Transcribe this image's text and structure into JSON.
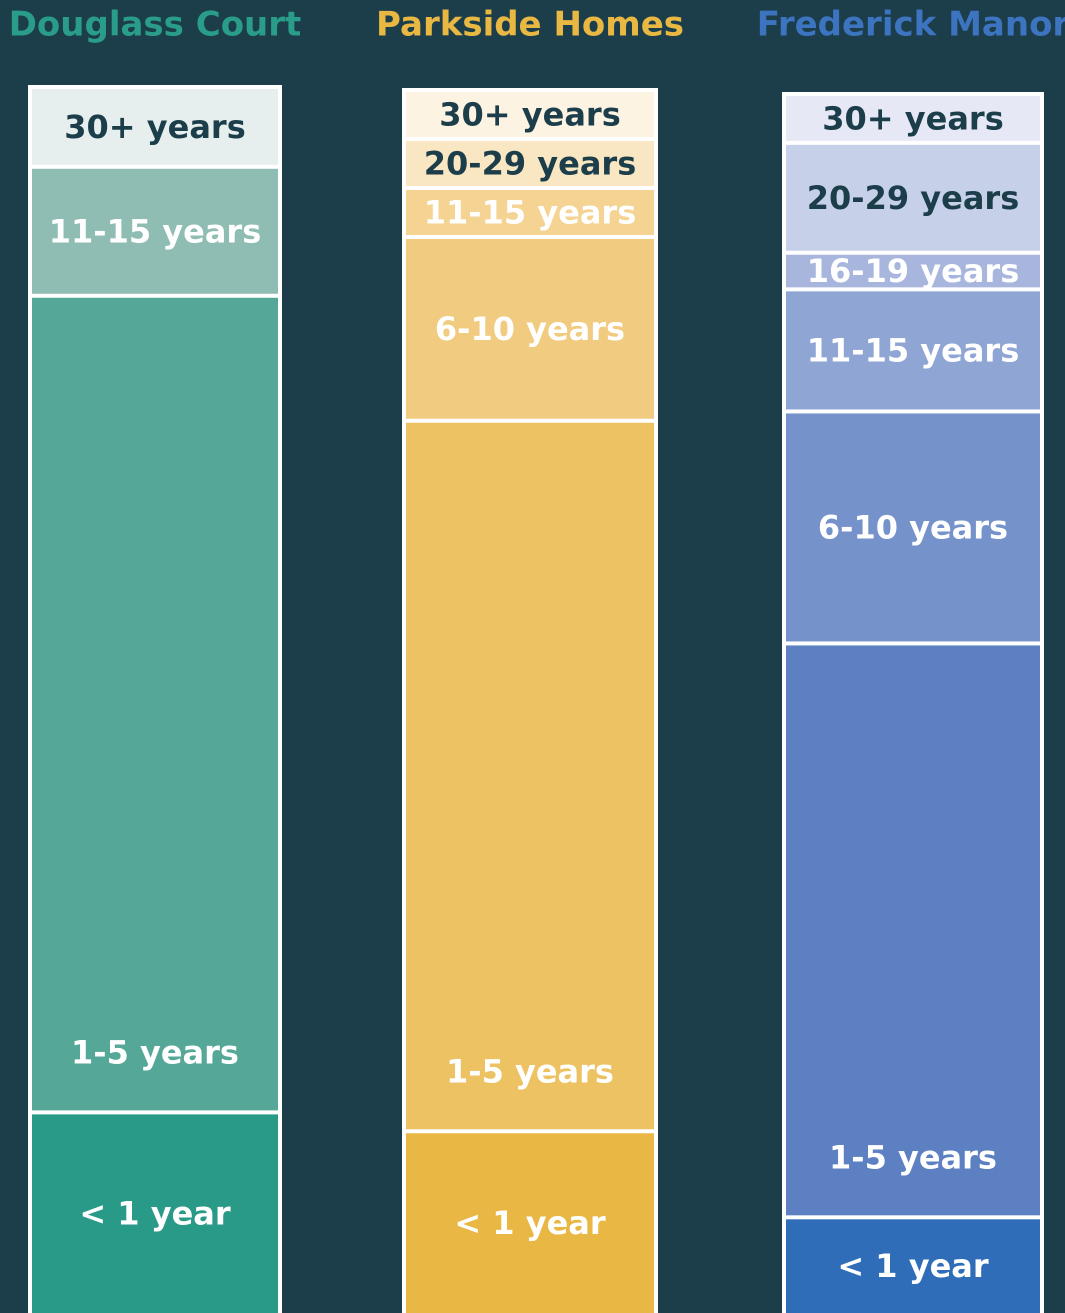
{
  "chart_data": {
    "type": "stacked-column",
    "columns": [
      {
        "name": "Douglass Court",
        "color": "#2a9d8a",
        "segments": [
          {
            "label": "30+ years",
            "value": 6.5,
            "color": "#e6efee",
            "label_color": "#1c3d4a"
          },
          {
            "label": "11-15 years",
            "value": 10.5,
            "color": "#8fbdb3",
            "label_color": "#ffffff"
          },
          {
            "label": "1-5 years",
            "value": 66.5,
            "color": "#55a797",
            "label_color": "#ffffff"
          },
          {
            "label": "< 1 year",
            "value": 16.5,
            "color": "#2a9a88",
            "label_color": "#ffffff"
          }
        ]
      },
      {
        "name": "Parkside Homes",
        "color": "#e8b843",
        "segments": [
          {
            "label": "30+ years",
            "value": 4,
            "color": "#fcf3e3",
            "label_color": "#1c3d4a"
          },
          {
            "label": "20-29 years",
            "value": 4,
            "color": "#f9e6c2",
            "label_color": "#1c3d4a"
          },
          {
            "label": "11-15 years",
            "value": 4,
            "color": "#f4d393",
            "label_color": "#ffffff"
          },
          {
            "label": "6-10 years",
            "value": 15,
            "color": "#f0cb80",
            "label_color": "#ffffff"
          },
          {
            "label": "1-5 years",
            "value": 58,
            "color": "#ecc263",
            "label_color": "#ffffff"
          },
          {
            "label": "< 1 year",
            "value": 15,
            "color": "#e9b743",
            "label_color": "#ffffff"
          }
        ]
      },
      {
        "name": "Frederick Manor",
        "color": "#3c74c0",
        "segments": [
          {
            "label": "30+ years",
            "value": 4,
            "color": "#e6e9f5",
            "label_color": "#1c3d4a"
          },
          {
            "label": "20-29 years",
            "value": 9,
            "color": "#c6d0e9",
            "label_color": "#1c3d4a"
          },
          {
            "label": "16-19 years",
            "value": 3,
            "color": "#a8b6de",
            "label_color": "#ffffff"
          },
          {
            "label": "11-15 years",
            "value": 10,
            "color": "#8fa5d4",
            "label_color": "#ffffff"
          },
          {
            "label": "6-10 years",
            "value": 19,
            "color": "#7592cb",
            "label_color": "#ffffff"
          },
          {
            "label": "1-5 years",
            "value": 47,
            "color": "#5c80c2",
            "label_color": "#ffffff"
          },
          {
            "label": "< 1 year",
            "value": 8,
            "color": "#2f6db8",
            "label_color": "#ffffff"
          }
        ]
      }
    ]
  }
}
